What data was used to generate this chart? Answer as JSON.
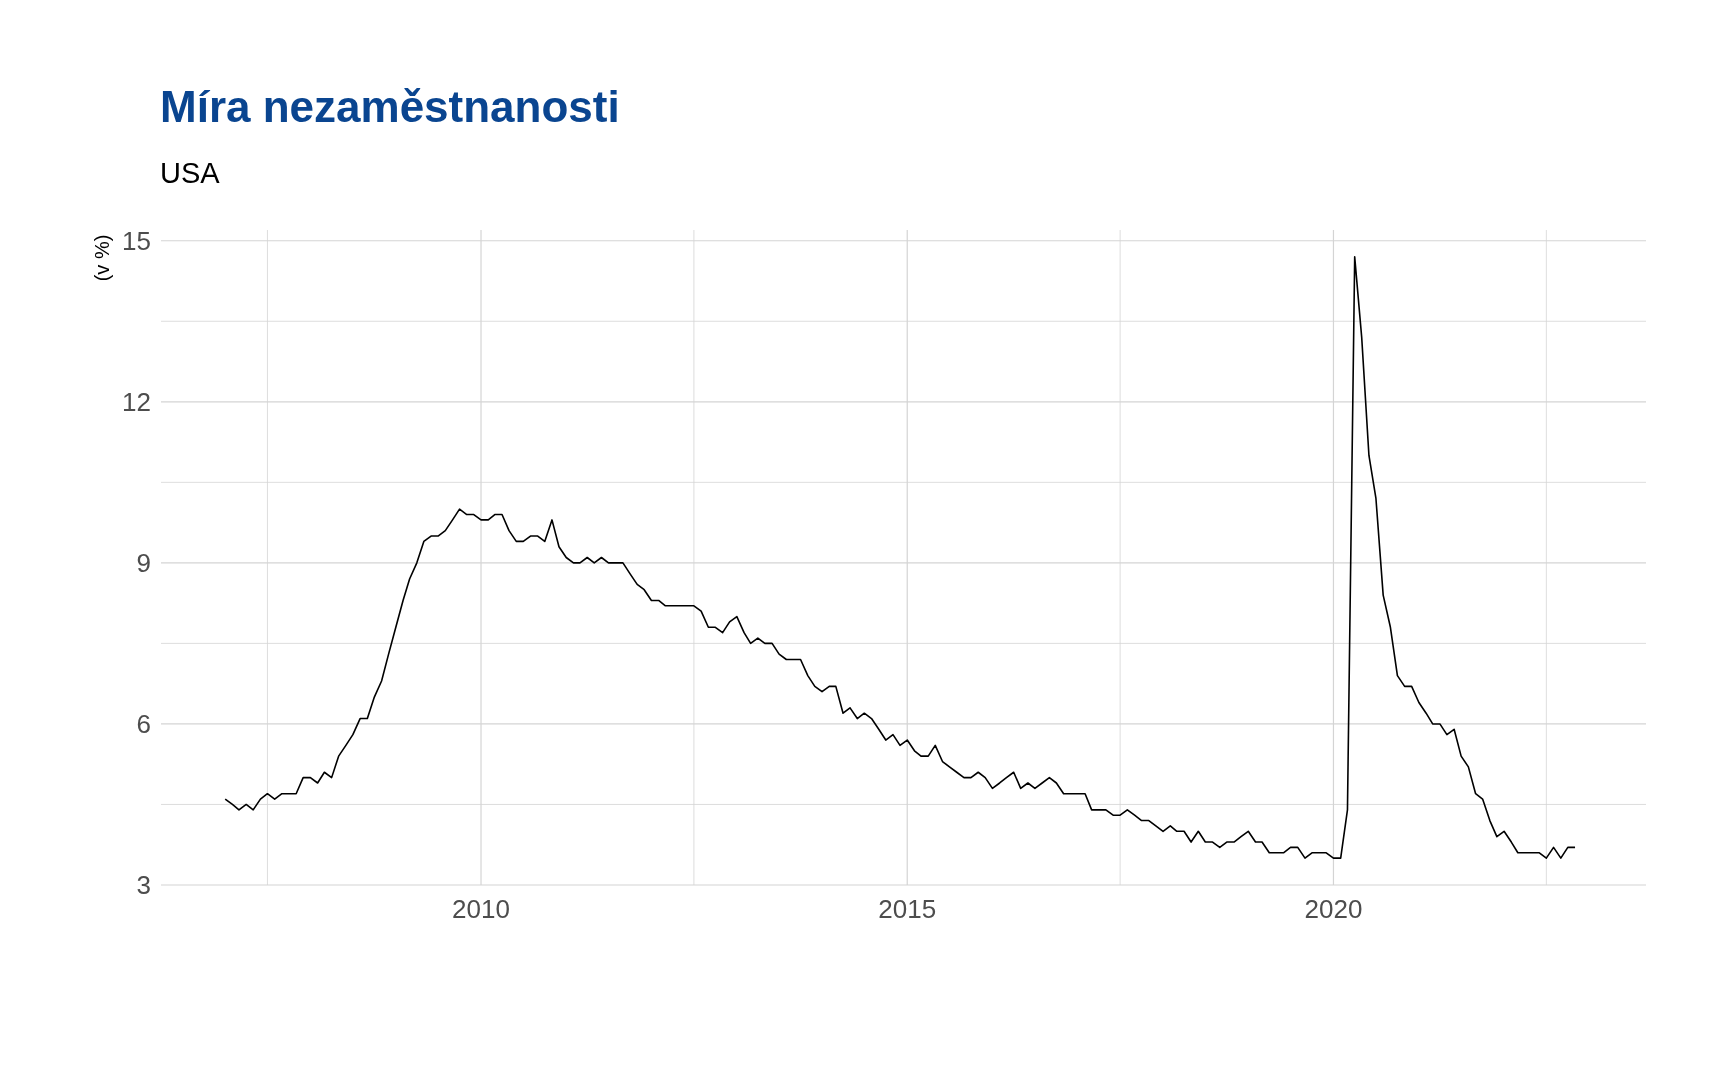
{
  "chart_data": {
    "type": "line",
    "title": "Míra nezaměstnanosti",
    "subtitle": "USA",
    "ylabel": "(v %)",
    "x": [
      "2007-01",
      "2007-02",
      "2007-03",
      "2007-04",
      "2007-05",
      "2007-06",
      "2007-07",
      "2007-08",
      "2007-09",
      "2007-10",
      "2007-11",
      "2007-12",
      "2008-01",
      "2008-02",
      "2008-03",
      "2008-04",
      "2008-05",
      "2008-06",
      "2008-07",
      "2008-08",
      "2008-09",
      "2008-10",
      "2008-11",
      "2008-12",
      "2009-01",
      "2009-02",
      "2009-03",
      "2009-04",
      "2009-05",
      "2009-06",
      "2009-07",
      "2009-08",
      "2009-09",
      "2009-10",
      "2009-11",
      "2009-12",
      "2010-01",
      "2010-02",
      "2010-03",
      "2010-04",
      "2010-05",
      "2010-06",
      "2010-07",
      "2010-08",
      "2010-09",
      "2010-10",
      "2010-11",
      "2010-12",
      "2011-01",
      "2011-02",
      "2011-03",
      "2011-04",
      "2011-05",
      "2011-06",
      "2011-07",
      "2011-08",
      "2011-09",
      "2011-10",
      "2011-11",
      "2011-12",
      "2012-01",
      "2012-02",
      "2012-03",
      "2012-04",
      "2012-05",
      "2012-06",
      "2012-07",
      "2012-08",
      "2012-09",
      "2012-10",
      "2012-11",
      "2012-12",
      "2013-01",
      "2013-02",
      "2013-03",
      "2013-04",
      "2013-05",
      "2013-06",
      "2013-07",
      "2013-08",
      "2013-09",
      "2013-10",
      "2013-11",
      "2013-12",
      "2014-01",
      "2014-02",
      "2014-03",
      "2014-04",
      "2014-05",
      "2014-06",
      "2014-07",
      "2014-08",
      "2014-09",
      "2014-10",
      "2014-11",
      "2014-12",
      "2015-01",
      "2015-02",
      "2015-03",
      "2015-04",
      "2015-05",
      "2015-06",
      "2015-07",
      "2015-08",
      "2015-09",
      "2015-10",
      "2015-11",
      "2015-12",
      "2016-01",
      "2016-02",
      "2016-03",
      "2016-04",
      "2016-05",
      "2016-06",
      "2016-07",
      "2016-08",
      "2016-09",
      "2016-10",
      "2016-11",
      "2016-12",
      "2017-01",
      "2017-02",
      "2017-03",
      "2017-04",
      "2017-05",
      "2017-06",
      "2017-07",
      "2017-08",
      "2017-09",
      "2017-10",
      "2017-11",
      "2017-12",
      "2018-01",
      "2018-02",
      "2018-03",
      "2018-04",
      "2018-05",
      "2018-06",
      "2018-07",
      "2018-08",
      "2018-09",
      "2018-10",
      "2018-11",
      "2018-12",
      "2019-01",
      "2019-02",
      "2019-03",
      "2019-04",
      "2019-05",
      "2019-06",
      "2019-07",
      "2019-08",
      "2019-09",
      "2019-10",
      "2019-11",
      "2019-12",
      "2020-01",
      "2020-02",
      "2020-03",
      "2020-04",
      "2020-05",
      "2020-06",
      "2020-07",
      "2020-08",
      "2020-09",
      "2020-10",
      "2020-11",
      "2020-12",
      "2021-01",
      "2021-02",
      "2021-03",
      "2021-04",
      "2021-05",
      "2021-06",
      "2021-07",
      "2021-08",
      "2021-09",
      "2021-10",
      "2021-11",
      "2021-12",
      "2022-01",
      "2022-02",
      "2022-03",
      "2022-04",
      "2022-05",
      "2022-06",
      "2022-07",
      "2022-08",
      "2022-09",
      "2022-10",
      "2022-11"
    ],
    "series": [
      {
        "color": "#000000",
        "values": [
          4.6,
          4.5,
          4.4,
          4.5,
          4.4,
          4.6,
          4.7,
          4.6,
          4.7,
          4.7,
          4.7,
          5.0,
          5.0,
          4.9,
          5.1,
          5.0,
          5.4,
          5.6,
          5.8,
          6.1,
          6.1,
          6.5,
          6.8,
          7.3,
          7.8,
          8.3,
          8.7,
          9.0,
          9.4,
          9.5,
          9.5,
          9.6,
          9.8,
          10.0,
          9.9,
          9.9,
          9.8,
          9.8,
          9.9,
          9.9,
          9.6,
          9.4,
          9.4,
          9.5,
          9.5,
          9.4,
          9.8,
          9.3,
          9.1,
          9.0,
          9.0,
          9.1,
          9.0,
          9.1,
          9.0,
          9.0,
          9.0,
          8.8,
          8.6,
          8.5,
          8.3,
          8.3,
          8.2,
          8.2,
          8.2,
          8.2,
          8.2,
          8.1,
          7.8,
          7.8,
          7.7,
          7.9,
          8.0,
          7.7,
          7.5,
          7.6,
          7.5,
          7.5,
          7.3,
          7.2,
          7.2,
          7.2,
          6.9,
          6.7,
          6.6,
          6.7,
          6.7,
          6.2,
          6.3,
          6.1,
          6.2,
          6.1,
          5.9,
          5.7,
          5.8,
          5.6,
          5.7,
          5.5,
          5.4,
          5.4,
          5.6,
          5.3,
          5.2,
          5.1,
          5.0,
          5.0,
          5.1,
          5.0,
          4.8,
          4.9,
          5.0,
          5.1,
          4.8,
          4.9,
          4.8,
          4.9,
          5.0,
          4.9,
          4.7,
          4.7,
          4.7,
          4.7,
          4.4,
          4.4,
          4.4,
          4.3,
          4.3,
          4.4,
          4.3,
          4.2,
          4.2,
          4.1,
          4.0,
          4.1,
          4.0,
          4.0,
          3.8,
          4.0,
          3.8,
          3.8,
          3.7,
          3.8,
          3.8,
          3.9,
          4.0,
          3.8,
          3.8,
          3.6,
          3.6,
          3.6,
          3.7,
          3.7,
          3.5,
          3.6,
          3.6,
          3.6,
          3.5,
          3.5,
          4.4,
          14.7,
          13.2,
          11.0,
          10.2,
          8.4,
          7.8,
          6.9,
          6.7,
          6.7,
          6.4,
          6.2,
          6.0,
          6.0,
          5.8,
          5.9,
          5.4,
          5.2,
          4.7,
          4.6,
          4.2,
          3.9,
          4.0,
          3.8,
          3.6,
          3.6,
          3.6,
          3.6,
          3.5,
          3.7,
          3.5,
          3.7,
          3.7
        ]
      }
    ],
    "xlim": [
      "2006-04",
      "2023-09"
    ],
    "xticks": [
      {
        "value": "2007-07",
        "label": null
      },
      {
        "value": "2010",
        "label": "2010"
      },
      {
        "value": "2012-07",
        "label": null
      },
      {
        "value": "2015",
        "label": "2015"
      },
      {
        "value": "2017-07",
        "label": null
      },
      {
        "value": "2020",
        "label": "2020"
      },
      {
        "value": "2022-07",
        "label": null
      }
    ],
    "ylim": [
      3,
      15.2
    ],
    "yticks": [
      3,
      {
        "value": 4.5,
        "label": null
      },
      6,
      {
        "value": 7.5,
        "label": null
      },
      9,
      {
        "value": 10.5,
        "label": null
      },
      12,
      {
        "value": 13.5,
        "label": null
      },
      15
    ],
    "grid": true,
    "marker": "none",
    "line_style": "solid"
  }
}
